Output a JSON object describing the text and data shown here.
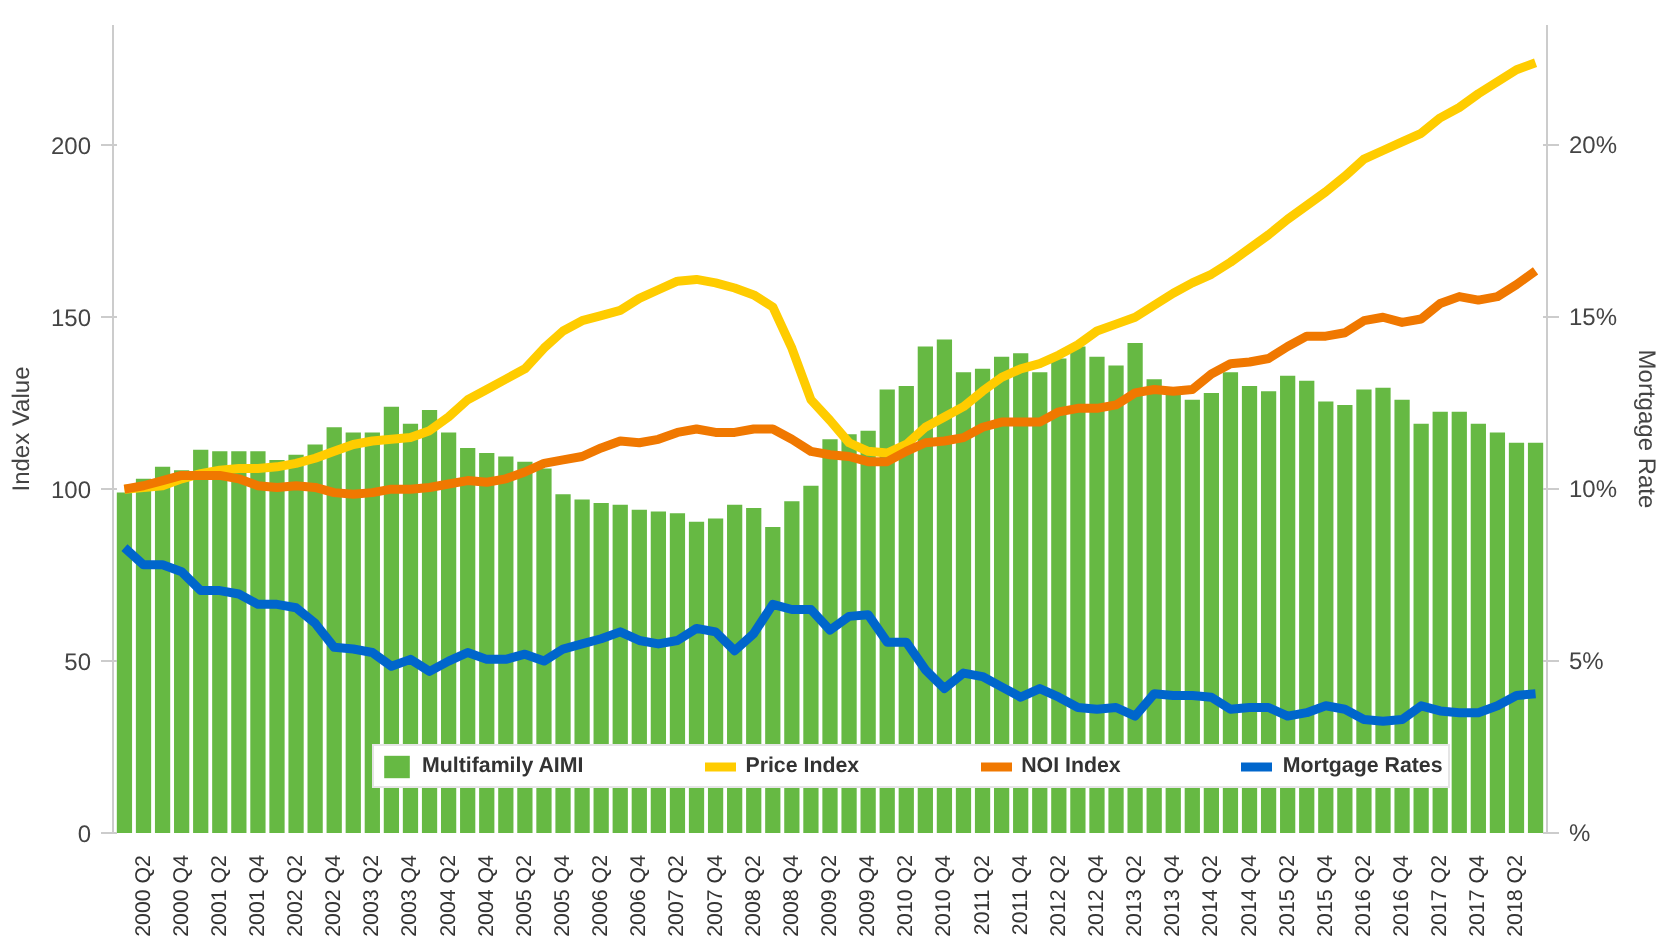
{
  "chart_data": {
    "type": "bar",
    "ylabel": "Index Value",
    "y2label": "Mortgage Rate",
    "categories": [
      null,
      "2000 Q2",
      null,
      "2000 Q4",
      null,
      "2001 Q2",
      null,
      "2001 Q4",
      null,
      "2002 Q2",
      null,
      "2002 Q4",
      null,
      "2003 Q2",
      null,
      "2003 Q4",
      null,
      "2004 Q2",
      null,
      "2004 Q4",
      null,
      "2005 Q2",
      null,
      "2005 Q4",
      null,
      "2006 Q2",
      null,
      "2006 Q4",
      null,
      "2007 Q2",
      null,
      "2007 Q4",
      null,
      "2008 Q2",
      null,
      "2008 Q4",
      null,
      "2009 Q2",
      null,
      "2009 Q4",
      null,
      "2010 Q2",
      null,
      "2010 Q4",
      null,
      "2011 Q2",
      null,
      "2011 Q4",
      null,
      "2012 Q2",
      null,
      "2012 Q4",
      null,
      "2013 Q2",
      null,
      "2013 Q4",
      null,
      "2014 Q2",
      null,
      "2014 Q4",
      null,
      "2015 Q2",
      null,
      "2015 Q4",
      null,
      "2016 Q2",
      null,
      "2016 Q4",
      null,
      "2017 Q2",
      null,
      "2017 Q4",
      null,
      "2018 Q2",
      null
    ],
    "series": [
      {
        "name": "Multifamily AIMI",
        "color": "#66b943",
        "values": [
          99,
          103,
          106.5,
          105.5,
          111.5,
          111,
          111,
          111,
          108.5,
          110,
          113,
          118,
          116.5,
          116.5,
          124,
          119,
          123,
          116.5,
          112,
          110.5,
          109.5,
          108,
          106,
          98.5,
          97,
          96,
          95.5,
          94,
          93.5,
          93,
          90.5,
          91.5,
          95.5,
          94.5,
          89,
          96.5,
          101,
          114.5,
          116,
          117,
          129,
          130,
          141.5,
          143.5,
          134,
          135,
          138.5,
          139.5,
          134,
          138,
          141.5,
          138.5,
          136,
          142.5,
          132,
          128,
          126,
          128,
          134,
          130,
          128.5,
          133,
          131.5,
          125.5,
          124.5,
          129,
          129.5,
          126,
          119,
          122.5,
          122.5,
          119,
          116.5,
          113.5,
          113.5
        ]
      },
      {
        "name": "Price Index",
        "type": "line",
        "color": "#ffcc00",
        "values": [
          100,
          100.5,
          101,
          103,
          104.5,
          105.5,
          106,
          106,
          106.5,
          107.5,
          109,
          111,
          113,
          114,
          114.5,
          115,
          117,
          121,
          126,
          129,
          132,
          135,
          141,
          146,
          149,
          150.5,
          152,
          155.5,
          158,
          160.5,
          161,
          160,
          158.5,
          156.5,
          153,
          141,
          126,
          120,
          113.5,
          111,
          110.5,
          113,
          118,
          121,
          124,
          128.5,
          132.5,
          135,
          136.5,
          139,
          142,
          146,
          148,
          150,
          153.5,
          157,
          160,
          162.5,
          166,
          170,
          174,
          178.5,
          182.5,
          186.5,
          191,
          196,
          198.5,
          201,
          203.5,
          208,
          211,
          215,
          218.5,
          222,
          224
        ]
      },
      {
        "name": "NOI Index",
        "type": "line",
        "color": "#f07800",
        "values": [
          100,
          101,
          102.5,
          104,
          104,
          104,
          103,
          101,
          100.5,
          101,
          100.5,
          99,
          98.5,
          99,
          100,
          100,
          100.5,
          101.5,
          102.5,
          102,
          103,
          105,
          107.5,
          108.5,
          109.5,
          112,
          114,
          113.5,
          114.5,
          116.5,
          117.5,
          116.5,
          116.5,
          117.5,
          117.5,
          114.5,
          111,
          110,
          109.5,
          108,
          108,
          111,
          113.5,
          114,
          115,
          118,
          119.5,
          119.5,
          119.5,
          122.5,
          123.5,
          123.5,
          124.5,
          128,
          129,
          128.5,
          129,
          133.5,
          136.5,
          137,
          138,
          141.5,
          144.5,
          144.5,
          145.5,
          149,
          150,
          148.5,
          149.5,
          154,
          156,
          155,
          156,
          159.5,
          163.5
        ]
      },
      {
        "name": "Mortgage Rates",
        "type": "line",
        "axis": "y2",
        "color": "#0066cc",
        "values": [
          8.3,
          7.8,
          7.8,
          7.6,
          7.05,
          7.05,
          6.95,
          6.65,
          6.65,
          6.55,
          6.1,
          5.4,
          5.35,
          5.25,
          4.85,
          5.05,
          4.7,
          5.0,
          5.25,
          5.05,
          5.05,
          5.2,
          5.0,
          5.35,
          5.5,
          5.65,
          5.85,
          5.6,
          5.5,
          5.6,
          5.95,
          5.85,
          5.3,
          5.8,
          6.65,
          6.5,
          6.5,
          5.9,
          6.3,
          6.35,
          5.55,
          5.55,
          4.75,
          4.2,
          4.65,
          4.55,
          4.25,
          3.95,
          4.2,
          3.95,
          3.65,
          3.6,
          3.65,
          3.4,
          4.05,
          4.0,
          4.0,
          3.95,
          3.6,
          3.65,
          3.65,
          3.4,
          3.5,
          3.7,
          3.6,
          3.3,
          3.25,
          3.3,
          3.7,
          3.55,
          3.5,
          3.5,
          3.7,
          4.0,
          4.05
        ]
      }
    ],
    "ylim": [
      0,
      235
    ],
    "yticks": [
      0,
      50,
      100,
      150,
      200
    ],
    "y2lim": [
      0,
      23.5
    ],
    "y2ticks": [
      {
        "value": 0,
        "label": "%"
      },
      {
        "value": 5,
        "label": "5%"
      },
      {
        "value": 10,
        "label": "10%"
      },
      {
        "value": 15,
        "label": "15%"
      },
      {
        "value": 20,
        "label": "20%"
      }
    ],
    "grid": false,
    "legend": "bottom"
  }
}
